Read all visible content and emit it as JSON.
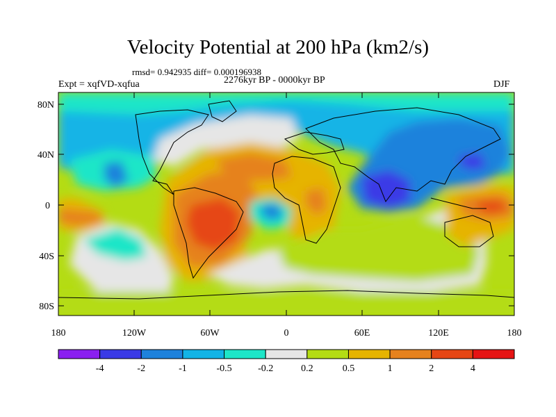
{
  "title": "Velocity Potential at 200 hPa (km2/s)",
  "stats": "rmsd= 0.942935 diff= 0.000196938",
  "period": "2276kyr BP - 0000kyr BP",
  "expt": "Expt = xqfVD-xqfua",
  "season": "DJF",
  "lat_labels": [
    "80N",
    "40N",
    "0",
    "40S",
    "80S"
  ],
  "lon_labels": [
    "180",
    "120W",
    "60W",
    "0",
    "60E",
    "120E",
    "180"
  ],
  "colorbar": {
    "labels": [
      "-4",
      "-2",
      "-1",
      "-0.5",
      "-0.2",
      "0.2",
      "0.5",
      "1",
      "2",
      "4"
    ],
    "colors": [
      "#8a1ff0",
      "#3a3ae6",
      "#1e82dc",
      "#12b4e6",
      "#1ee6c8",
      "#e6e6e6",
      "#b4dc14",
      "#e6b400",
      "#e6821e",
      "#e64614",
      "#e61414"
    ]
  }
}
